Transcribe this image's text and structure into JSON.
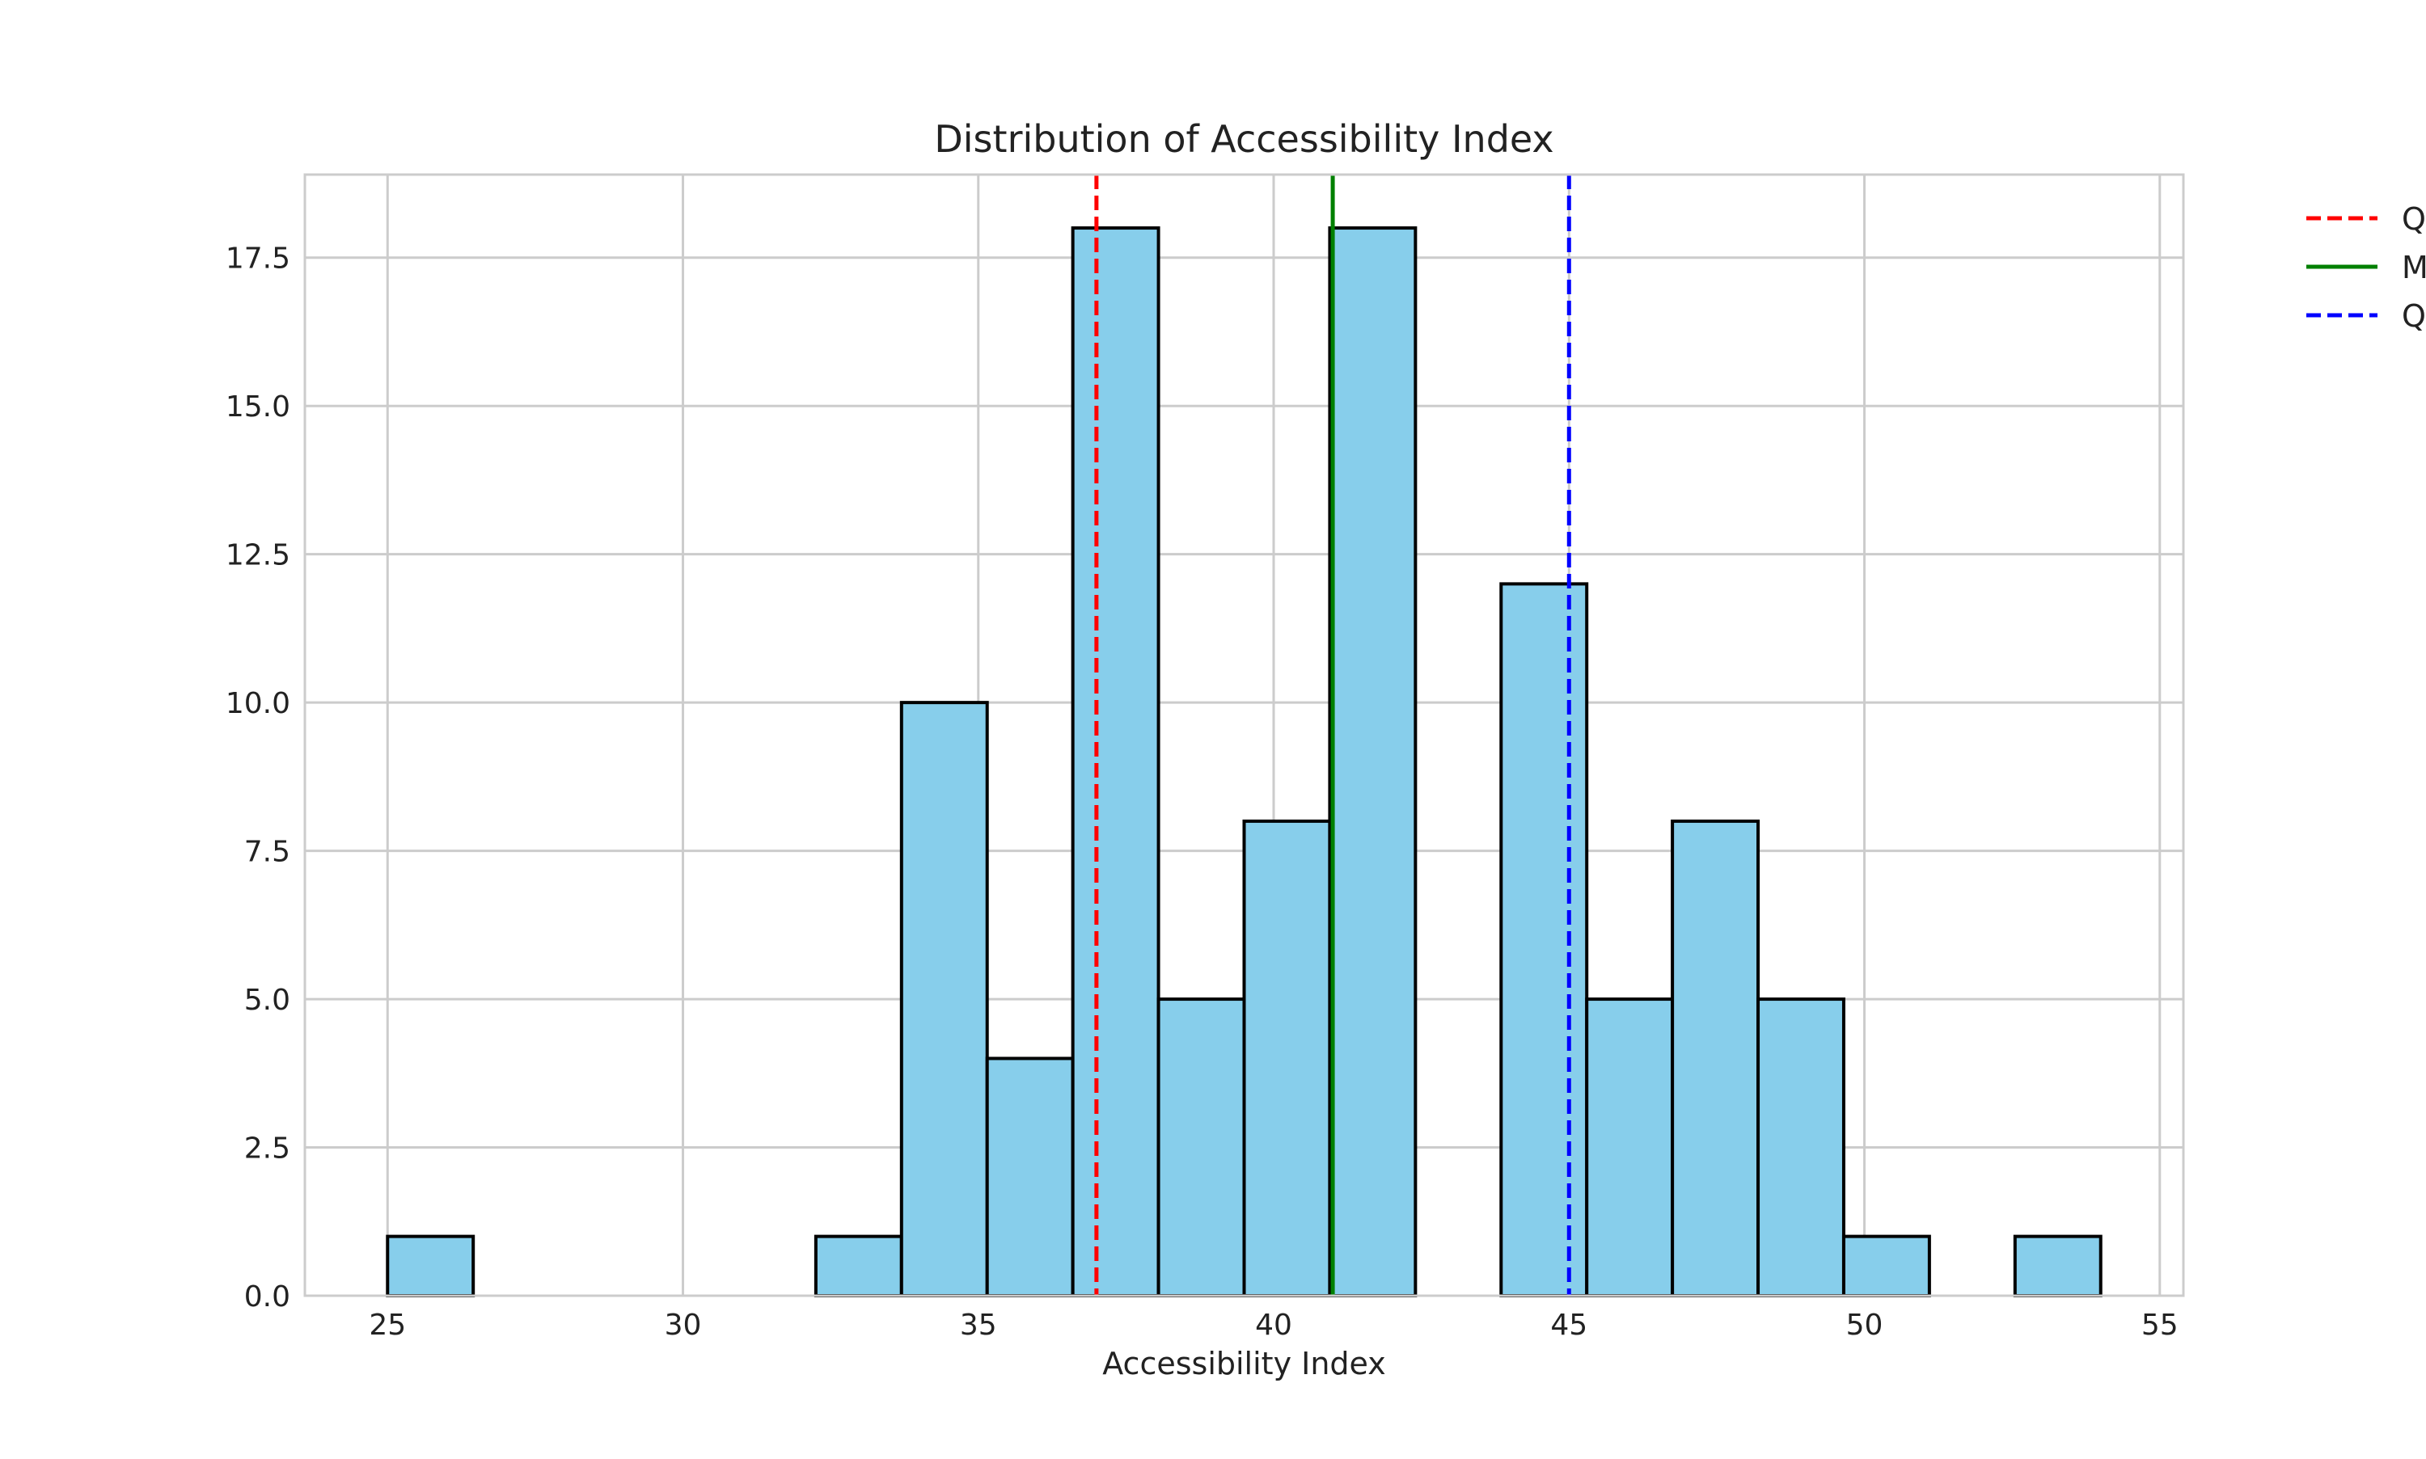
{
  "chart_data": {
    "type": "bar",
    "title": "Distribution of Accessibility Index",
    "xlabel": "Accessibility Index",
    "ylabel": "",
    "xlim": [
      23.6,
      55.4
    ],
    "ylim": [
      0,
      18.9
    ],
    "grid": true,
    "x_ticks": [
      25,
      30,
      35,
      40,
      45,
      50,
      55
    ],
    "x_tick_labels": [
      "25",
      "30",
      "35",
      "40",
      "45",
      "50",
      "55"
    ],
    "y_ticks": [
      0,
      2.5,
      5,
      7.5,
      10,
      12.5,
      15,
      17.5
    ],
    "y_tick_labels": [
      "0.0",
      "2.5",
      "5.0",
      "7.5",
      "10.0",
      "12.5",
      "15.0",
      "17.5"
    ],
    "bin_edges": [
      25.0,
      26.45,
      27.9,
      29.35,
      30.8,
      32.25,
      33.7,
      35.15,
      36.6,
      38.05,
      39.5,
      40.95,
      42.4,
      43.85,
      45.3,
      46.75,
      48.2,
      49.65,
      51.1,
      52.55,
      54.0
    ],
    "counts": [
      1,
      0,
      0,
      0,
      0,
      1,
      10,
      4,
      18,
      5,
      8,
      18,
      0,
      12,
      5,
      8,
      5,
      1,
      0,
      1
    ],
    "bar_color": "#87ceeb",
    "bar_edge_color": "#000000",
    "reference_lines": [
      {
        "label": "Q",
        "x": 37.0,
        "color": "#ff0000",
        "style": "dashed"
      },
      {
        "label": "M",
        "x": 41.0,
        "color": "#008000",
        "style": "solid"
      },
      {
        "label": "Q",
        "x": 45.0,
        "color": "#0000ff",
        "style": "dashed"
      }
    ],
    "legend_position": "outside-top-right"
  }
}
